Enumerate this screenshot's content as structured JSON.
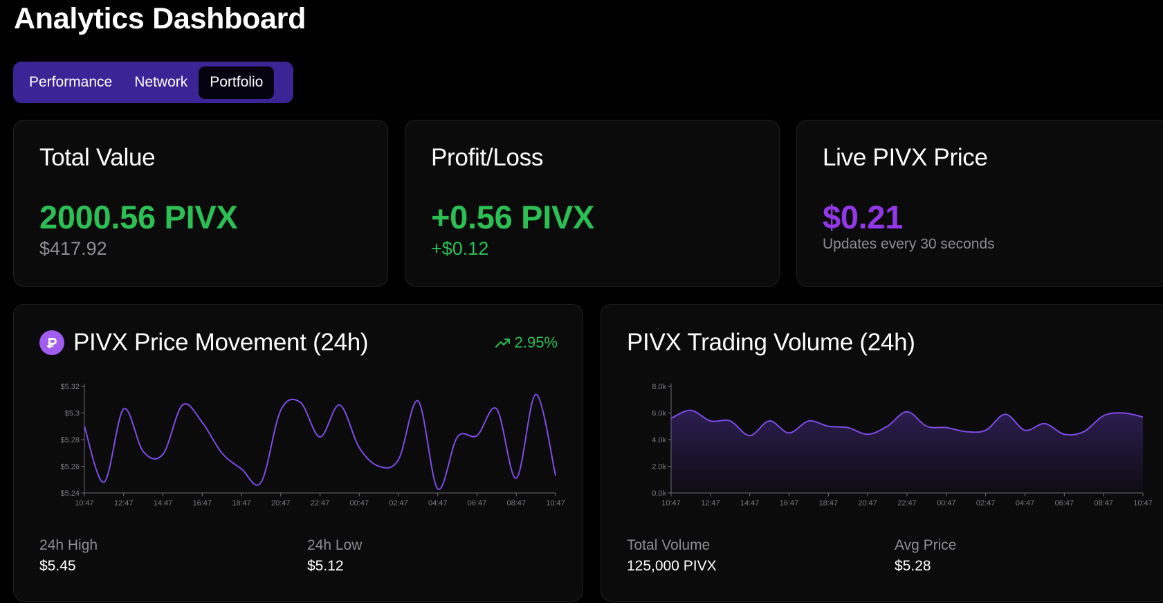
{
  "page_title": "Analytics Dashboard",
  "tabs": [
    {
      "label": "Performance",
      "active": false
    },
    {
      "label": "Network",
      "active": false
    },
    {
      "label": "Portfolio",
      "active": true
    }
  ],
  "cards": {
    "total_value": {
      "title": "Total Value",
      "value": "2000.56 PIVX",
      "sub": "$417.92"
    },
    "profit_loss": {
      "title": "Profit/Loss",
      "value": "+0.56 PIVX",
      "sub": "+$0.12"
    },
    "live_price": {
      "title": "Live PIVX Price",
      "value": "$0.21",
      "sub": "Updates every 30 seconds"
    }
  },
  "price_panel": {
    "title": "PIVX Price Movement (24h)",
    "logo_icon": "pivx-logo-icon",
    "change": "2.95%",
    "change_icon": "trending-up-icon",
    "stats": [
      {
        "label": "24h High",
        "value": "$5.45"
      },
      {
        "label": "24h Low",
        "value": "$5.12"
      }
    ]
  },
  "volume_panel": {
    "title": "PIVX Trading Volume (24h)",
    "stats": [
      {
        "label": "Total Volume",
        "value": "125,000 PIVX"
      },
      {
        "label": "Avg Price",
        "value": "$5.28"
      }
    ]
  },
  "colors": {
    "accent": "#9437e8",
    "line": "#7f4be6",
    "positive": "#2bbf54",
    "tab_bar": "#3b2596",
    "card_bg": "#0b0b0c"
  },
  "chart_data": [
    {
      "type": "line",
      "x_ticks": [
        "10:47",
        "12:47",
        "14:47",
        "16:47",
        "18:47",
        "20:47",
        "22:47",
        "00:47",
        "02:47",
        "04:47",
        "06:47",
        "08:47",
        "10:47"
      ],
      "y_ticks": [
        "$5.24",
        "$5.26",
        "$5.28",
        "$5.3",
        "$5.32"
      ],
      "ylim": [
        5.24,
        5.32
      ],
      "grid": false,
      "series": [
        {
          "values": [
            5.29,
            5.248,
            5.303,
            5.271,
            5.269,
            5.306,
            5.293,
            5.27,
            5.258,
            5.248,
            5.302,
            5.308,
            5.282,
            5.306,
            5.274,
            5.26,
            5.265,
            5.309,
            5.243,
            5.282,
            5.283,
            5.303,
            5.251,
            5.314,
            5.253
          ]
        }
      ]
    },
    {
      "type": "area",
      "x_ticks": [
        "10:47",
        "12:47",
        "14:47",
        "16:47",
        "18:47",
        "20:47",
        "22:47",
        "00:47",
        "02:47",
        "04:47",
        "06:47",
        "08:47",
        "10:47"
      ],
      "y_ticks": [
        "0.0k",
        "2.0k",
        "4.0k",
        "6.0k",
        "8.0k"
      ],
      "ylim": [
        0,
        8000
      ],
      "grid": false,
      "series": [
        {
          "values": [
            5600,
            6200,
            5400,
            5400,
            4300,
            5400,
            4500,
            5400,
            5000,
            4900,
            4400,
            5000,
            6100,
            5000,
            4900,
            4600,
            4700,
            5900,
            4700,
            5200,
            4400,
            4600,
            5800,
            6000,
            5700
          ]
        }
      ]
    }
  ]
}
